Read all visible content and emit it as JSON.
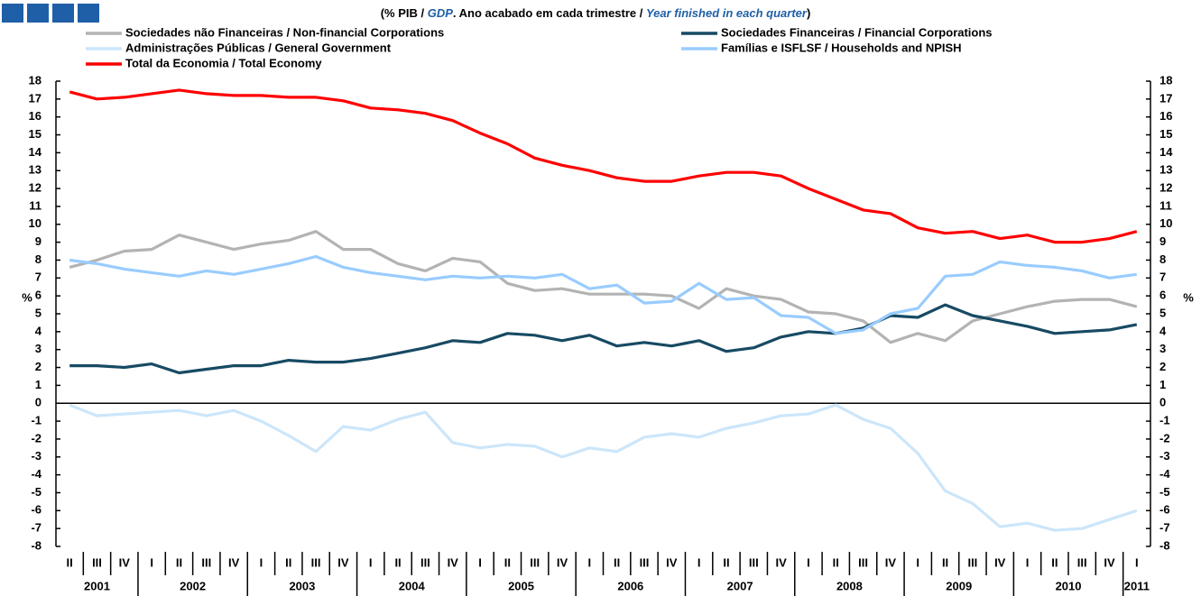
{
  "chart_data": {
    "type": "line",
    "subtitle": [
      "(% PIB / ",
      "GDP",
      ". Ano acabado em cada trimestre / ",
      "Year finished in each quarter",
      ")"
    ],
    "y_label": "%",
    "y2_label": "%",
    "categories": [
      "II",
      "III",
      "IV",
      "I",
      "II",
      "III",
      "IV",
      "I",
      "II",
      "III",
      "IV",
      "I",
      "II",
      "III",
      "IV",
      "I",
      "II",
      "III",
      "IV",
      "I",
      "II",
      "III",
      "IV",
      "I",
      "II",
      "III",
      "IV",
      "I",
      "II",
      "III",
      "IV",
      "I",
      "II",
      "III",
      "IV",
      "I",
      "II",
      "III",
      "IV",
      "I"
    ],
    "years": [
      "2001",
      null,
      null,
      "2002",
      null,
      null,
      null,
      "2003",
      null,
      null,
      null,
      "2004",
      null,
      null,
      null,
      "2005",
      null,
      null,
      null,
      "2006",
      null,
      null,
      null,
      "2007",
      null,
      null,
      null,
      "2008",
      null,
      null,
      null,
      "2009",
      null,
      null,
      null,
      "2010",
      null,
      null,
      null,
      "2011"
    ],
    "series": [
      {
        "name": "Sociedades não Financeiras / Non-financial Corporations",
        "color": "#b3b3b3",
        "values": [
          7.6,
          8.0,
          8.5,
          8.6,
          9.4,
          9.0,
          8.6,
          8.9,
          9.1,
          9.6,
          8.6,
          8.6,
          7.8,
          7.4,
          8.1,
          7.9,
          6.7,
          6.3,
          6.4,
          6.1,
          6.1,
          6.1,
          6.0,
          5.3,
          6.4,
          6.0,
          5.8,
          5.1,
          5.0,
          4.6,
          3.4,
          3.9,
          3.5,
          4.6,
          5.0,
          5.4,
          5.7,
          5.8,
          5.8,
          5.4
        ]
      },
      {
        "name": "Sociedades Financeiras / Financial Corporations",
        "color": "#174a63",
        "values": [
          2.1,
          2.1,
          2.0,
          2.2,
          1.7,
          1.9,
          2.1,
          2.1,
          2.4,
          2.3,
          2.3,
          2.5,
          2.8,
          3.1,
          3.5,
          3.4,
          3.9,
          3.8,
          3.5,
          3.8,
          3.2,
          3.4,
          3.2,
          3.5,
          2.9,
          3.1,
          3.7,
          4.0,
          3.9,
          4.2,
          4.9,
          4.8,
          5.5,
          4.9,
          4.6,
          4.3,
          3.9,
          4.0,
          4.1,
          4.4
        ]
      },
      {
        "name": "Administrações Públicas / General Government",
        "color": "#cce6fa",
        "values": [
          -0.1,
          -0.7,
          -0.6,
          -0.5,
          -0.4,
          -0.7,
          -0.4,
          -1.0,
          -1.8,
          -2.7,
          -1.3,
          -1.5,
          -0.9,
          -0.5,
          -2.2,
          -2.5,
          -2.3,
          -2.4,
          -3.0,
          -2.5,
          -2.7,
          -1.9,
          -1.7,
          -1.9,
          -1.4,
          -1.1,
          -0.7,
          -0.6,
          -0.1,
          -0.9,
          -1.4,
          -2.8,
          -4.9,
          -5.6,
          -6.9,
          -6.7,
          -7.1,
          -7.0,
          -6.5,
          -6.0
        ]
      },
      {
        "name": "Famílias e ISFLSF / Households and NPISH",
        "color": "#99ccff",
        "values": [
          8.0,
          7.8,
          7.5,
          7.3,
          7.1,
          7.4,
          7.2,
          7.5,
          7.8,
          8.2,
          7.6,
          7.3,
          7.1,
          6.9,
          7.1,
          7.0,
          7.1,
          7.0,
          7.2,
          6.4,
          6.6,
          5.6,
          5.7,
          6.7,
          5.8,
          5.9,
          4.9,
          4.8,
          3.9,
          4.1,
          5.0,
          5.3,
          7.1,
          7.2,
          7.9,
          7.7,
          7.6,
          7.4,
          7.0,
          7.2
        ]
      },
      {
        "name": "Total da Economia / Total Economy",
        "color": "#ff0000",
        "values": [
          17.4,
          17.0,
          17.1,
          17.3,
          17.5,
          17.3,
          17.2,
          17.2,
          17.1,
          17.1,
          16.9,
          16.5,
          16.4,
          16.2,
          15.8,
          15.1,
          14.5,
          13.7,
          13.3,
          13.0,
          12.6,
          12.4,
          12.4,
          12.7,
          12.9,
          12.9,
          12.7,
          12.0,
          11.4,
          10.8,
          10.6,
          9.8,
          9.5,
          9.6,
          9.2,
          9.4,
          9.0,
          9.0,
          9.2,
          9.6
        ]
      }
    ],
    "ylim": [
      -8,
      18
    ],
    "yticks": [
      -8,
      -7,
      -6,
      -5,
      -4,
      -3,
      -2,
      -1,
      0,
      1,
      2,
      3,
      4,
      5,
      6,
      7,
      8,
      9,
      10,
      11,
      12,
      13,
      14,
      15,
      16,
      17,
      18
    ],
    "y2lim": [
      -8,
      18
    ],
    "y2ticks": [
      -8,
      -7,
      -6,
      -5,
      -4,
      -3,
      -2,
      -1,
      0,
      1,
      2,
      3,
      4,
      5,
      6,
      7,
      8,
      9,
      10,
      11,
      12,
      13,
      14,
      15,
      16,
      17,
      18
    ],
    "legend": "top"
  }
}
